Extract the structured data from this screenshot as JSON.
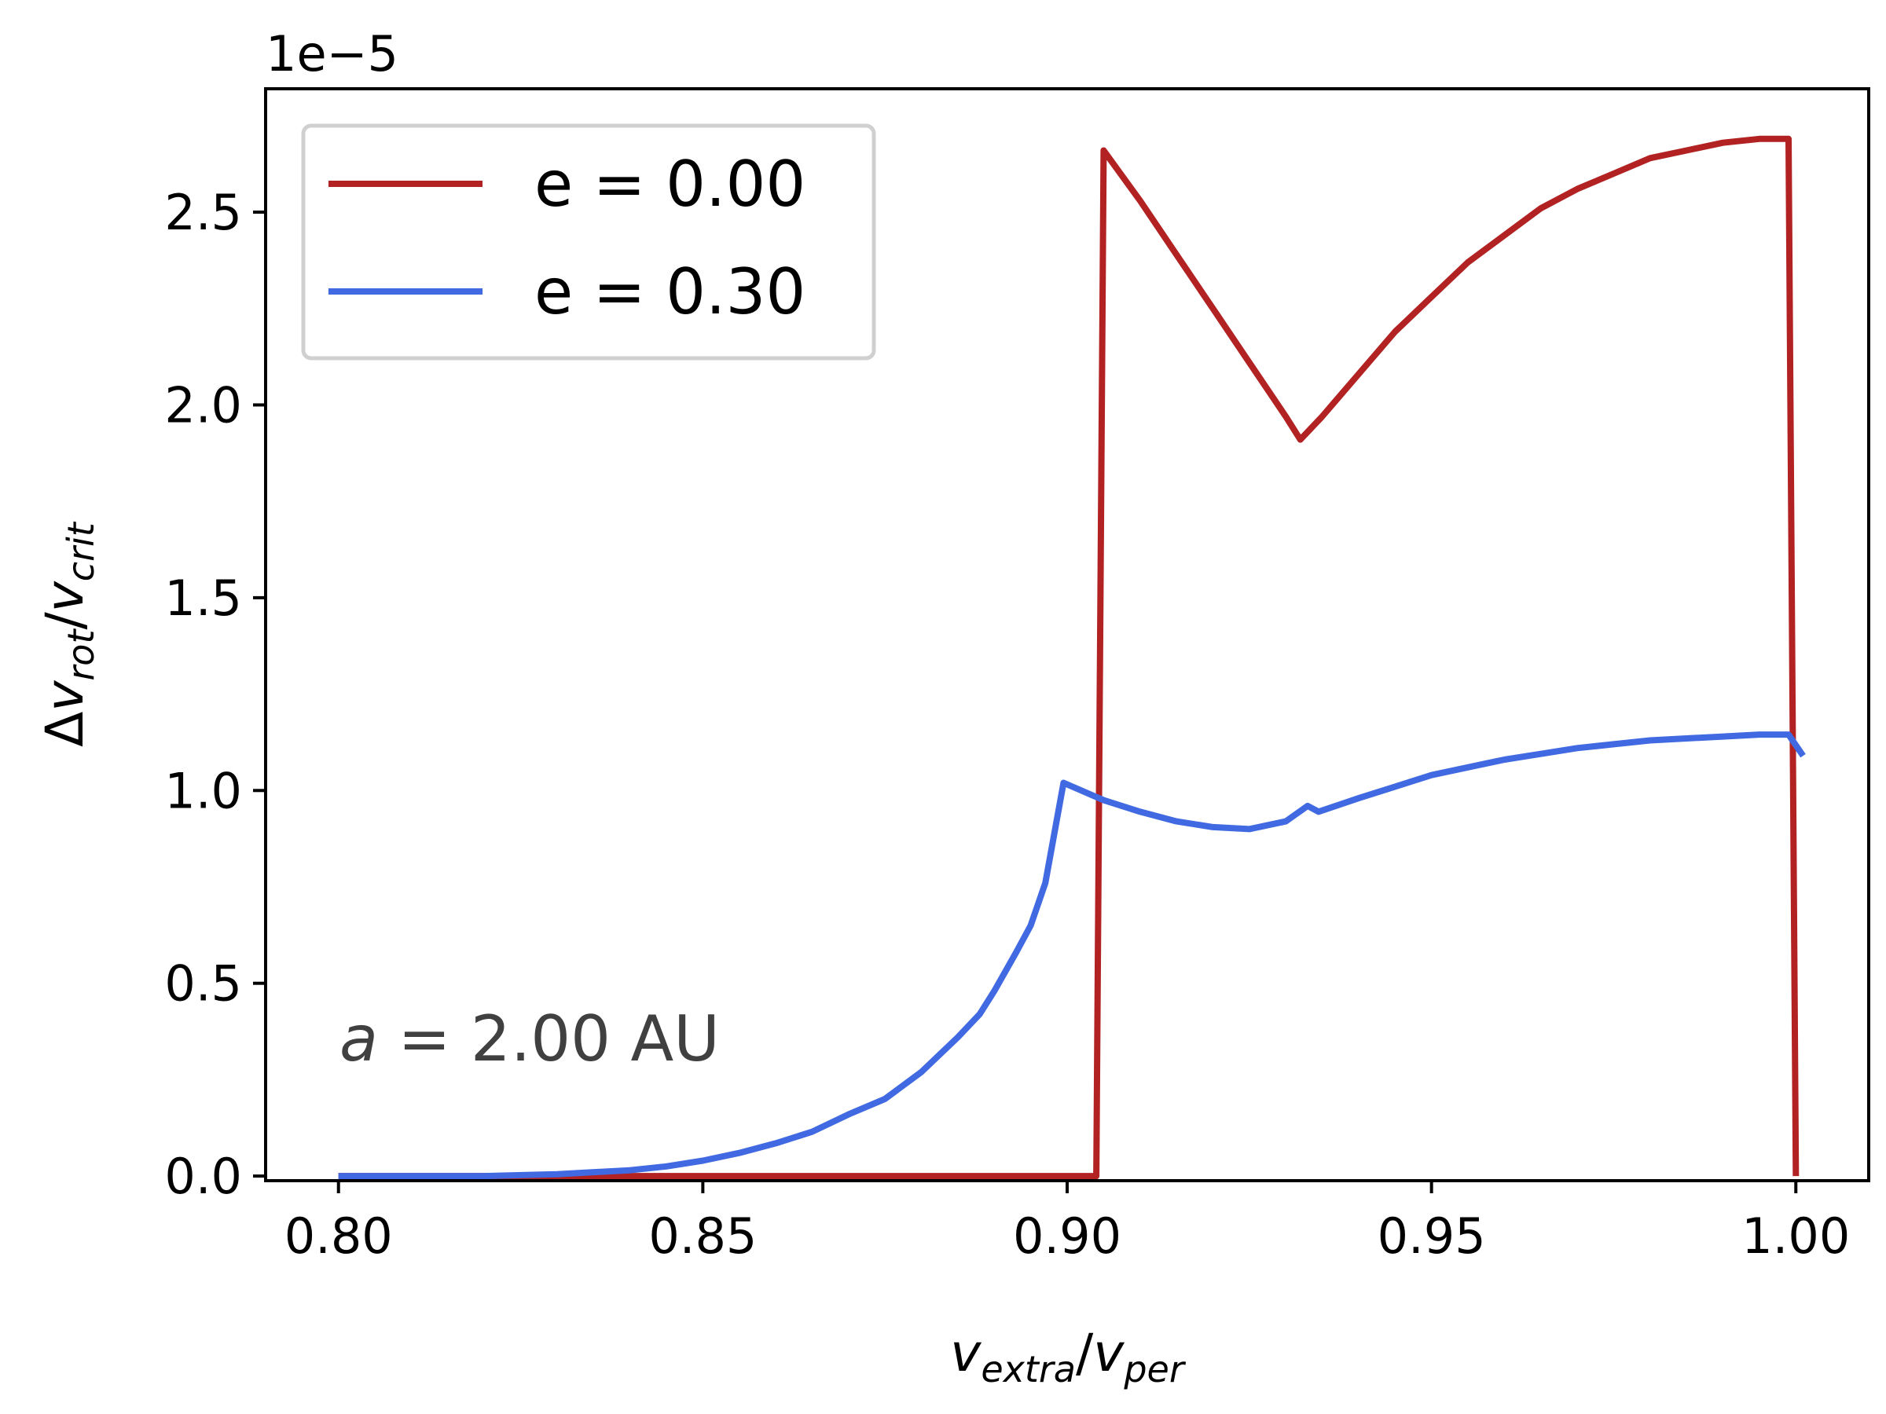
{
  "chart_data": {
    "type": "line",
    "x_label": {
      "main": "v",
      "sub1": "extra",
      "slash": "/",
      "main2": "v",
      "sub2": "per"
    },
    "y_label": {
      "delta": "Δ",
      "main": "v",
      "sub1": "rot",
      "slash": "/",
      "main2": "v",
      "sub2": "crit"
    },
    "y_offset_text": "1e−5",
    "xlim": [
      0.79,
      1.01
    ],
    "ylim": [
      -0.012,
      2.82
    ],
    "x_ticks": [
      0.8,
      0.85,
      0.9,
      0.95,
      1.0
    ],
    "x_tick_labels": [
      "0.80",
      "0.85",
      "0.90",
      "0.95",
      "1.00"
    ],
    "y_ticks": [
      0.0,
      0.5,
      1.0,
      1.5,
      2.0,
      2.5
    ],
    "y_tick_labels": [
      "0.0",
      "0.5",
      "1.0",
      "1.5",
      "2.0",
      "2.5"
    ],
    "grid": false,
    "legend_position": "top-left",
    "annotation": {
      "italic": "a",
      "rest": " = 2.00 AU"
    },
    "series": [
      {
        "name": "e = 0.00",
        "color": "#b22222",
        "points": [
          [
            0.8,
            0.0
          ],
          [
            0.82,
            0.0
          ],
          [
            0.84,
            0.0
          ],
          [
            0.86,
            0.0
          ],
          [
            0.88,
            0.0
          ],
          [
            0.904,
            0.0
          ],
          [
            0.905,
            2.66
          ],
          [
            0.91,
            2.53
          ],
          [
            0.915,
            2.39
          ],
          [
            0.92,
            2.25
          ],
          [
            0.925,
            2.11
          ],
          [
            0.93,
            1.97
          ],
          [
            0.932,
            1.91
          ],
          [
            0.935,
            1.97
          ],
          [
            0.94,
            2.08
          ],
          [
            0.945,
            2.19
          ],
          [
            0.95,
            2.28
          ],
          [
            0.955,
            2.37
          ],
          [
            0.96,
            2.44
          ],
          [
            0.965,
            2.51
          ],
          [
            0.97,
            2.56
          ],
          [
            0.975,
            2.6
          ],
          [
            0.98,
            2.64
          ],
          [
            0.985,
            2.66
          ],
          [
            0.99,
            2.68
          ],
          [
            0.995,
            2.69
          ],
          [
            0.999,
            2.69
          ],
          [
            1.0,
            0.0
          ]
        ]
      },
      {
        "name": "e = 0.30",
        "color": "#4169e1",
        "points": [
          [
            0.8,
            0.0
          ],
          [
            0.82,
            0.0
          ],
          [
            0.83,
            0.005
          ],
          [
            0.84,
            0.015
          ],
          [
            0.845,
            0.025
          ],
          [
            0.85,
            0.04
          ],
          [
            0.855,
            0.06
          ],
          [
            0.86,
            0.085
          ],
          [
            0.865,
            0.115
          ],
          [
            0.87,
            0.16
          ],
          [
            0.875,
            0.2
          ],
          [
            0.88,
            0.27
          ],
          [
            0.885,
            0.36
          ],
          [
            0.888,
            0.42
          ],
          [
            0.89,
            0.48
          ],
          [
            0.893,
            0.58
          ],
          [
            0.895,
            0.65
          ],
          [
            0.897,
            0.76
          ],
          [
            0.8995,
            1.02
          ],
          [
            0.905,
            0.975
          ],
          [
            0.91,
            0.945
          ],
          [
            0.915,
            0.92
          ],
          [
            0.92,
            0.905
          ],
          [
            0.925,
            0.9
          ],
          [
            0.93,
            0.92
          ],
          [
            0.933,
            0.96
          ],
          [
            0.9345,
            0.945
          ],
          [
            0.94,
            0.98
          ],
          [
            0.945,
            1.01
          ],
          [
            0.95,
            1.04
          ],
          [
            0.955,
            1.06
          ],
          [
            0.96,
            1.08
          ],
          [
            0.965,
            1.095
          ],
          [
            0.97,
            1.11
          ],
          [
            0.975,
            1.12
          ],
          [
            0.98,
            1.13
          ],
          [
            0.985,
            1.135
          ],
          [
            0.99,
            1.14
          ],
          [
            0.995,
            1.145
          ],
          [
            0.999,
            1.145
          ],
          [
            1.001,
            1.09
          ]
        ]
      }
    ]
  }
}
